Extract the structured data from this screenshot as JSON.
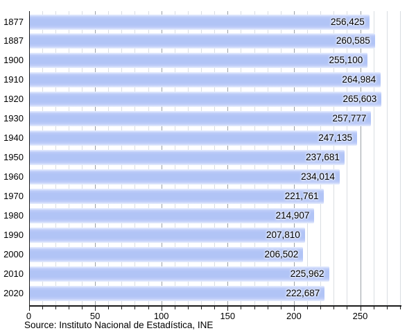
{
  "chart_data": {
    "type": "bar",
    "orientation": "horizontal",
    "title": "",
    "categories": [
      "1877",
      "1887",
      "1900",
      "1910",
      "1920",
      "1930",
      "1940",
      "1950",
      "1960",
      "1970",
      "1980",
      "1990",
      "2000",
      "2010",
      "2020"
    ],
    "values": [
      256425,
      260585,
      255100,
      264984,
      265603,
      257777,
      247135,
      237681,
      234014,
      221761,
      214907,
      207810,
      206502,
      225962,
      222687
    ],
    "value_labels": [
      "256,425",
      "260,585",
      "255,100",
      "264,984",
      "265,603",
      "257,777",
      "247,135",
      "237,681",
      "234,014",
      "221,761",
      "214,907",
      "207,810",
      "206,502",
      "225,962",
      "222,687"
    ],
    "xlabel": "",
    "ylabel": "",
    "xlim": [
      0,
      280
    ],
    "x_ticks": {
      "values": [
        0,
        50,
        100,
        150,
        200,
        250
      ],
      "labels": [
        "0",
        "50",
        "100",
        "150",
        "200",
        "250"
      ]
    },
    "x_minor_step": 10,
    "grid": "vertical minor and major gridlines, visible between bars",
    "legend_position": "none",
    "source_caption": "Source: Instituto Nacional de Estadística, INE",
    "colors": {
      "bar_fill": "#b1c4f6",
      "bar_fill_light": "#e9effe",
      "grid_minor": "#d9dde2",
      "grid_major": "#9aa0a6",
      "axis": "#1a1a1a",
      "text": "#000000",
      "background": "#ffffff"
    }
  }
}
